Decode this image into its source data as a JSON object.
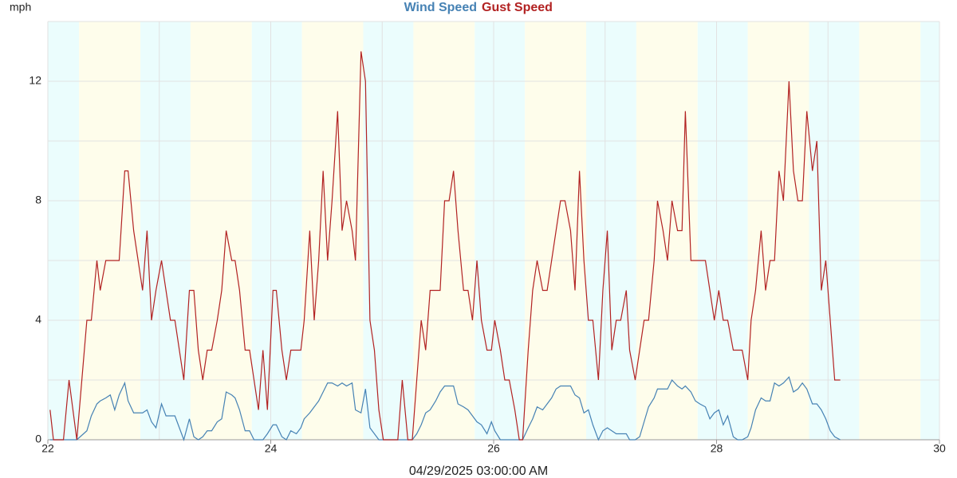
{
  "chart_data": {
    "type": "line",
    "y_label": "mph",
    "x_label": "04/29/2025 03:00:00 AM",
    "x": [
      22.02,
      22.05,
      22.14,
      22.19,
      22.26,
      22.35,
      22.39,
      22.44,
      22.47,
      22.52,
      22.56,
      22.6,
      22.64,
      22.69,
      22.72,
      22.77,
      22.85,
      22.89,
      22.93,
      22.97,
      23.02,
      23.06,
      23.1,
      23.14,
      23.18,
      23.22,
      23.27,
      23.31,
      23.35,
      23.39,
      23.43,
      23.47,
      23.52,
      23.56,
      23.6,
      23.65,
      23.68,
      23.72,
      23.77,
      23.81,
      23.85,
      23.89,
      23.93,
      23.97,
      24.02,
      24.05,
      24.1,
      24.14,
      24.18,
      24.23,
      24.27,
      24.3,
      24.35,
      24.39,
      24.43,
      24.47,
      24.51,
      24.55,
      24.6,
      24.64,
      24.68,
      24.73,
      24.76,
      24.81,
      24.85,
      24.89,
      24.93,
      24.97,
      25.01,
      25.14,
      25.18,
      25.23,
      25.27,
      25.31,
      25.35,
      25.39,
      25.43,
      25.48,
      25.52,
      25.56,
      25.6,
      25.64,
      25.68,
      25.73,
      25.77,
      25.81,
      25.85,
      25.89,
      25.94,
      25.98,
      26.01,
      26.06,
      26.1,
      26.14,
      26.19,
      26.23,
      26.26,
      26.31,
      26.35,
      26.39,
      26.44,
      26.48,
      26.52,
      26.56,
      26.6,
      26.64,
      26.69,
      26.73,
      26.77,
      26.81,
      26.85,
      26.89,
      26.94,
      26.98,
      27.02,
      27.06,
      27.1,
      27.14,
      27.19,
      27.22,
      27.27,
      27.31,
      27.35,
      27.39,
      27.44,
      27.47,
      27.52,
      27.56,
      27.6,
      27.65,
      27.69,
      27.72,
      27.77,
      27.81,
      27.85,
      27.9,
      27.94,
      27.98,
      28.02,
      28.06,
      28.1,
      28.15,
      28.19,
      28.23,
      28.28,
      28.31,
      28.35,
      28.4,
      28.44,
      28.48,
      28.52,
      28.56,
      28.6,
      28.65,
      28.69,
      28.73,
      28.77,
      28.81,
      28.86,
      28.9,
      28.94,
      28.98,
      29.02,
      29.06,
      29.11
    ],
    "series": [
      {
        "name": "Wind Speed",
        "color": "#4682b4",
        "values": [
          0,
          0,
          0,
          0,
          0,
          0.3,
          0.8,
          1.2,
          1.3,
          1.4,
          1.5,
          1.0,
          1.5,
          1.9,
          1.3,
          0.9,
          0.9,
          1.0,
          0.6,
          0.4,
          1.2,
          0.8,
          0.8,
          0.8,
          0.4,
          0,
          0.7,
          0.1,
          0,
          0.1,
          0.3,
          0.3,
          0.6,
          0.7,
          1.6,
          1.5,
          1.4,
          1.0,
          0.3,
          0.3,
          0,
          0,
          0,
          0.2,
          0.5,
          0.5,
          0.1,
          0,
          0.3,
          0.2,
          0.4,
          0.7,
          0.9,
          1.1,
          1.3,
          1.6,
          1.9,
          1.9,
          1.8,
          1.9,
          1.8,
          1.9,
          1.0,
          0.9,
          1.7,
          0.4,
          0.2,
          0,
          0,
          0,
          0,
          0,
          0,
          0.2,
          0.5,
          0.9,
          1.0,
          1.3,
          1.6,
          1.8,
          1.8,
          1.8,
          1.2,
          1.1,
          1.0,
          0.8,
          0.6,
          0.5,
          0.2,
          0.6,
          0.3,
          0,
          0,
          0,
          0,
          0,
          0,
          0.4,
          0.7,
          1.1,
          1.0,
          1.2,
          1.4,
          1.7,
          1.8,
          1.8,
          1.8,
          1.5,
          1.4,
          0.9,
          1.0,
          0.5,
          0,
          0.3,
          0.4,
          0.3,
          0.2,
          0.2,
          0.2,
          0,
          0,
          0.1,
          0.6,
          1.1,
          1.4,
          1.7,
          1.7,
          1.7,
          2.0,
          1.8,
          1.7,
          1.8,
          1.6,
          1.3,
          1.2,
          1.1,
          0.7,
          0.9,
          1.0,
          0.5,
          0.8,
          0.1,
          0,
          0,
          0.1,
          0.4,
          1.0,
          1.4,
          1.3,
          1.3,
          1.9,
          1.8,
          1.9,
          2.1,
          1.6,
          1.7,
          1.9,
          1.7,
          1.2,
          1.2,
          1.0,
          0.7,
          0.3,
          0.1,
          0
        ]
      },
      {
        "name": "Gust Speed",
        "color": "#b22222",
        "values": [
          1,
          0,
          0,
          2,
          0,
          4,
          4,
          6,
          5,
          6,
          6,
          6,
          6,
          9,
          9,
          7,
          5,
          7,
          4,
          5,
          6,
          5,
          4,
          4,
          3,
          2,
          5,
          5,
          3,
          2,
          3,
          3,
          4,
          5,
          7,
          6,
          6,
          5,
          3,
          3,
          2,
          1,
          3,
          1,
          5,
          5,
          3,
          2,
          3,
          3,
          3,
          4,
          7,
          4,
          6,
          9,
          6,
          8,
          11,
          7,
          8,
          7,
          6,
          13,
          12,
          4,
          3,
          1,
          0,
          0,
          2,
          0,
          0,
          2,
          4,
          3,
          5,
          5,
          5,
          8,
          8,
          9,
          7,
          5,
          5,
          4,
          6,
          4,
          3,
          3,
          4,
          3,
          2,
          2,
          1,
          0,
          0,
          3,
          5,
          6,
          5,
          5,
          6,
          7,
          8,
          8,
          7,
          5,
          9,
          6,
          4,
          4,
          2,
          5,
          7,
          3,
          4,
          4,
          5,
          3,
          2,
          3,
          4,
          4,
          6,
          8,
          7,
          6,
          8,
          7,
          7,
          11,
          6,
          6,
          6,
          6,
          5,
          4,
          5,
          4,
          4,
          3,
          3,
          3,
          2,
          4,
          5,
          7,
          5,
          6,
          6,
          9,
          8,
          12,
          9,
          8,
          8,
          11,
          9,
          10,
          5,
          6,
          4,
          2,
          2
        ]
      }
    ],
    "xlim": [
      22,
      30
    ],
    "xticks": [
      22,
      24,
      26,
      28,
      30
    ],
    "ylim": [
      0,
      14
    ],
    "yticks": [
      0,
      4,
      8,
      12
    ],
    "xgrid": [
      22,
      23,
      24,
      25,
      26,
      27,
      28,
      29,
      30
    ],
    "ygrid": [
      0,
      2,
      4,
      6,
      8,
      10,
      12,
      14
    ],
    "bands": [
      {
        "x": [
          22,
          22.28
        ],
        "color": "#ebfdfd"
      },
      {
        "x": [
          22.28,
          22.83
        ],
        "color": "#fefdeb"
      },
      {
        "x": [
          22.83,
          23.28
        ],
        "color": "#ebfdfd"
      },
      {
        "x": [
          23.28,
          23.83
        ],
        "color": "#fefdeb"
      },
      {
        "x": [
          23.83,
          24.28
        ],
        "color": "#ebfdfd"
      },
      {
        "x": [
          24.28,
          24.83
        ],
        "color": "#fefdeb"
      },
      {
        "x": [
          24.83,
          25.28
        ],
        "color": "#ebfdfd"
      },
      {
        "x": [
          25.28,
          25.83
        ],
        "color": "#fefdeb"
      },
      {
        "x": [
          25.83,
          26.28
        ],
        "color": "#ebfdfd"
      },
      {
        "x": [
          26.28,
          26.83
        ],
        "color": "#fefdeb"
      },
      {
        "x": [
          26.83,
          27.28
        ],
        "color": "#ebfdfd"
      },
      {
        "x": [
          27.28,
          27.83
        ],
        "color": "#fefdeb"
      },
      {
        "x": [
          27.83,
          28.28
        ],
        "color": "#ebfdfd"
      },
      {
        "x": [
          28.28,
          28.83
        ],
        "color": "#fefdeb"
      },
      {
        "x": [
          28.83,
          29.28
        ],
        "color": "#ebfdfd"
      },
      {
        "x": [
          29.28,
          29.83
        ],
        "color": "#fefdeb"
      },
      {
        "x": [
          29.83,
          30
        ],
        "color": "#ebfdfd"
      }
    ]
  }
}
